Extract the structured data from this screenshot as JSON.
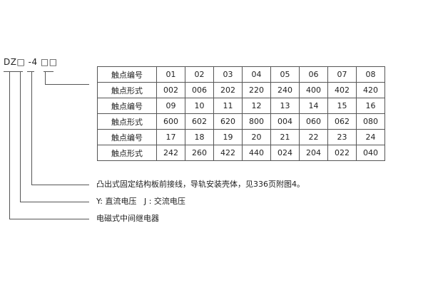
{
  "model_code": "DZ□ -4 □□",
  "table": {
    "rows": [
      {
        "label": "触点编号",
        "values": [
          "01",
          "02",
          "03",
          "04",
          "05",
          "06",
          "07",
          "08"
        ]
      },
      {
        "label": "触点形式",
        "values": [
          "002",
          "006",
          "202",
          "220",
          "240",
          "400",
          "402",
          "420"
        ]
      },
      {
        "label": "触点编号",
        "values": [
          "09",
          "10",
          "11",
          "12",
          "13",
          "14",
          "15",
          "16"
        ]
      },
      {
        "label": "触点形式",
        "values": [
          "600",
          "602",
          "620",
          "800",
          "004",
          "060",
          "062",
          "080"
        ]
      },
      {
        "label": "触点编号",
        "values": [
          "17",
          "18",
          "19",
          "20",
          "21",
          "22",
          "23",
          "24"
        ]
      },
      {
        "label": "触点形式",
        "values": [
          "242",
          "260",
          "422",
          "440",
          "024",
          "204",
          "022",
          "040"
        ]
      }
    ]
  },
  "notes": {
    "structure": "凸出式固定结构板前接线，导轨安装壳体，见336页附图4。",
    "voltage": "Y: 直流电压   J : 交流电压",
    "type": "电磁式中间继电器"
  }
}
